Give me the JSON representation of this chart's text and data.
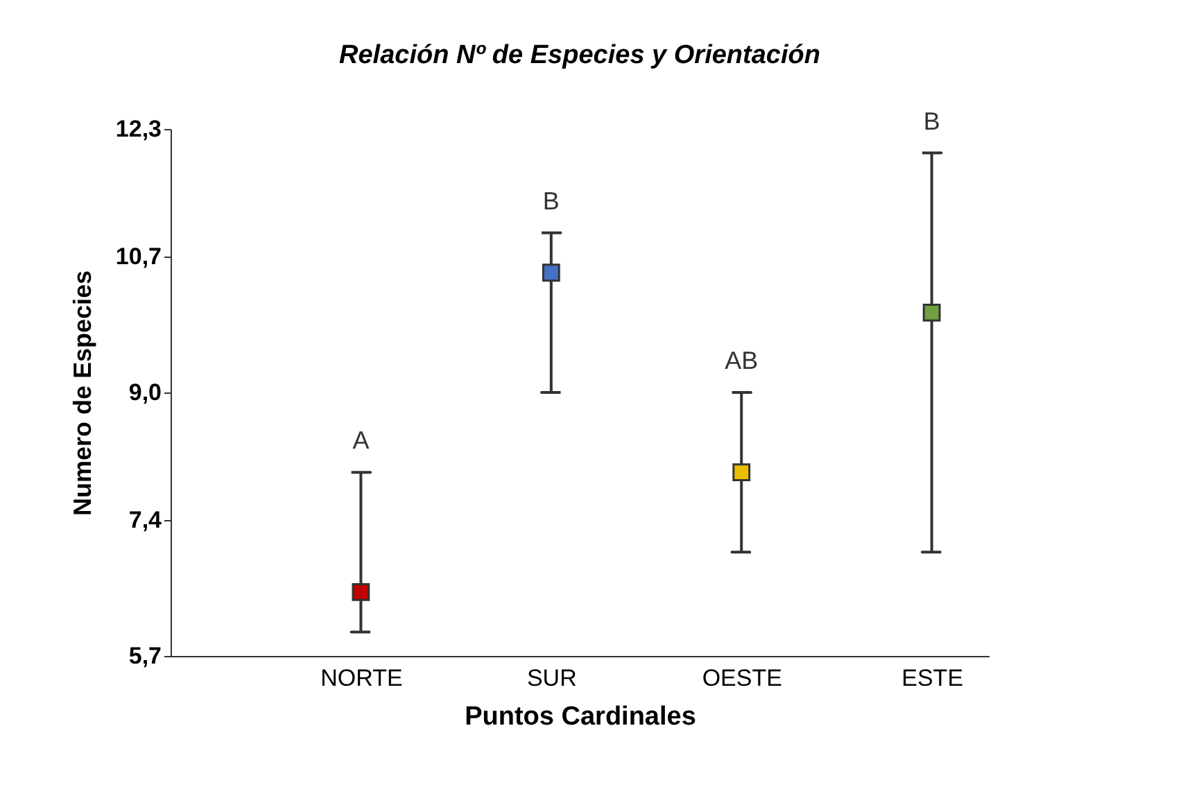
{
  "chart_data": {
    "type": "scatter",
    "title": "Relación Nº de Especies y Orientación",
    "xlabel": "Puntos Cardinales",
    "ylabel": "Numero de Especies",
    "categories": [
      "NORTE",
      "SUR",
      "OESTE",
      "ESTE"
    ],
    "values": [
      6.5,
      10.5,
      8.0,
      10.0
    ],
    "colors": [
      "#c00000",
      "#4472c4",
      "#e8c000",
      "#70a040"
    ],
    "errors": [
      [
        6.0,
        8.0
      ],
      [
        9.0,
        11.0
      ],
      [
        7.0,
        9.0
      ],
      [
        7.0,
        12.0
      ]
    ],
    "marker": "square",
    "ylim": [
      5.7,
      12.3
    ],
    "yticks": [
      {
        "value": 5.7,
        "label": "5,7"
      },
      {
        "value": 7.4,
        "label": "7,4"
      },
      {
        "value": 9.0,
        "label": "9,0"
      },
      {
        "value": 10.7,
        "label": "10,7"
      },
      {
        "value": 12.3,
        "label": "12,3"
      }
    ],
    "grid": false,
    "legend": false,
    "annotations": [
      {
        "text": "A",
        "x": "NORTE",
        "y": 8.0
      },
      {
        "text": "B",
        "x": "SUR",
        "y": 11.0
      },
      {
        "text": "AB",
        "x": "OESTE",
        "y": 9.0
      },
      {
        "text": "B",
        "x": "ESTE",
        "y": 12.0
      }
    ]
  }
}
